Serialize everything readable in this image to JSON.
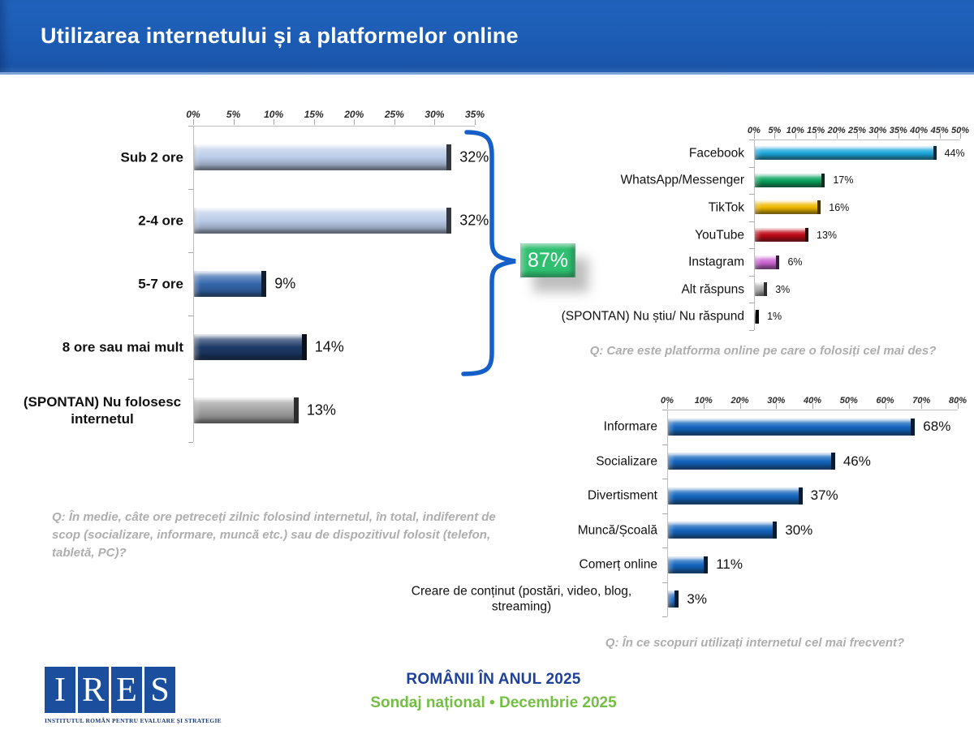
{
  "header": {
    "title": "Utilizarea internetului și a platformelor online",
    "bg_color": "#1d5cb4"
  },
  "callout": {
    "value": "87%",
    "color": "#2fbf71"
  },
  "chart_data": [
    {
      "type": "bar",
      "orientation": "horizontal",
      "categories": [
        "Sub 2 ore",
        "2-4 ore",
        "5-7 ore",
        "8 ore sau mai mult",
        "(SPONTAN) Nu folosesc internetul"
      ],
      "values": [
        32,
        32,
        9,
        14,
        13
      ],
      "value_labels": [
        "32%",
        "32%",
        "9%",
        "14%",
        "13%"
      ],
      "unit": "%",
      "axis": {
        "min": 0,
        "max": 35,
        "step": 5
      },
      "colors": [
        "#b9cbe8",
        "#b9cbe8",
        "#3466ac",
        "#1d3a68",
        "#a2a2a2"
      ],
      "grid": false,
      "question": "Q: În medie, câte ore petreceți zilnic folosind internetul, în total, indiferent de scop (socializare, informare, muncă etc.) sau de dispozitivul folosit (telefon, tabletă, PC)?",
      "annotation": {
        "label": "87%",
        "covers": [
          "Sub 2 ore",
          "2-4 ore",
          "5-7 ore",
          "8 ore sau mai mult"
        ]
      }
    },
    {
      "type": "bar",
      "orientation": "horizontal",
      "categories": [
        "Facebook",
        "WhatsApp/Messenger",
        "TikTok",
        "YouTube",
        "Instagram",
        "Alt răspuns",
        "(SPONTAN) Nu știu/ Nu răspund"
      ],
      "values": [
        44,
        17,
        16,
        13,
        6,
        3,
        1
      ],
      "value_labels": [
        "44%",
        "17%",
        "16%",
        "13%",
        "6%",
        "3%",
        "1%"
      ],
      "unit": "%",
      "axis": {
        "min": 0,
        "max": 50,
        "step": 5
      },
      "colors": [
        "#1da8dd",
        "#0aa35f",
        "#eeb800",
        "#c00a18",
        "#cb64d3",
        "#a3a3a3",
        "#1a1a1a"
      ],
      "grid": false,
      "question": "Q: Care este platforma online pe care o folosiți cel mai des?"
    },
    {
      "type": "bar",
      "orientation": "horizontal",
      "categories": [
        "Informare",
        "Socializare",
        "Divertisment",
        "Muncă/Școală",
        "Comerț online",
        "Creare de conținut (postări, video, blog, streaming)"
      ],
      "values": [
        68,
        46,
        37,
        30,
        11,
        3
      ],
      "value_labels": [
        "68%",
        "46%",
        "37%",
        "30%",
        "11%",
        "3%"
      ],
      "unit": "%",
      "axis": {
        "min": 0,
        "max": 80,
        "step": 10
      },
      "color": "#1465bd",
      "grid": false,
      "question": "Q: În ce scopuri utilizați internetul cel mai frecvent?"
    }
  ],
  "footer": {
    "logo_letters": [
      "I",
      "R",
      "E",
      "S"
    ],
    "logo_subtitle": "INSTITUTUL ROMÂN PENTRU EVALUARE ȘI STRATEGIE",
    "line1": "ROMÂNII ÎN ANUL 2025",
    "line2": "Sondaj național • Decembrie 2025",
    "line1_color": "#1e429b",
    "line2_color": "#74bf43"
  }
}
